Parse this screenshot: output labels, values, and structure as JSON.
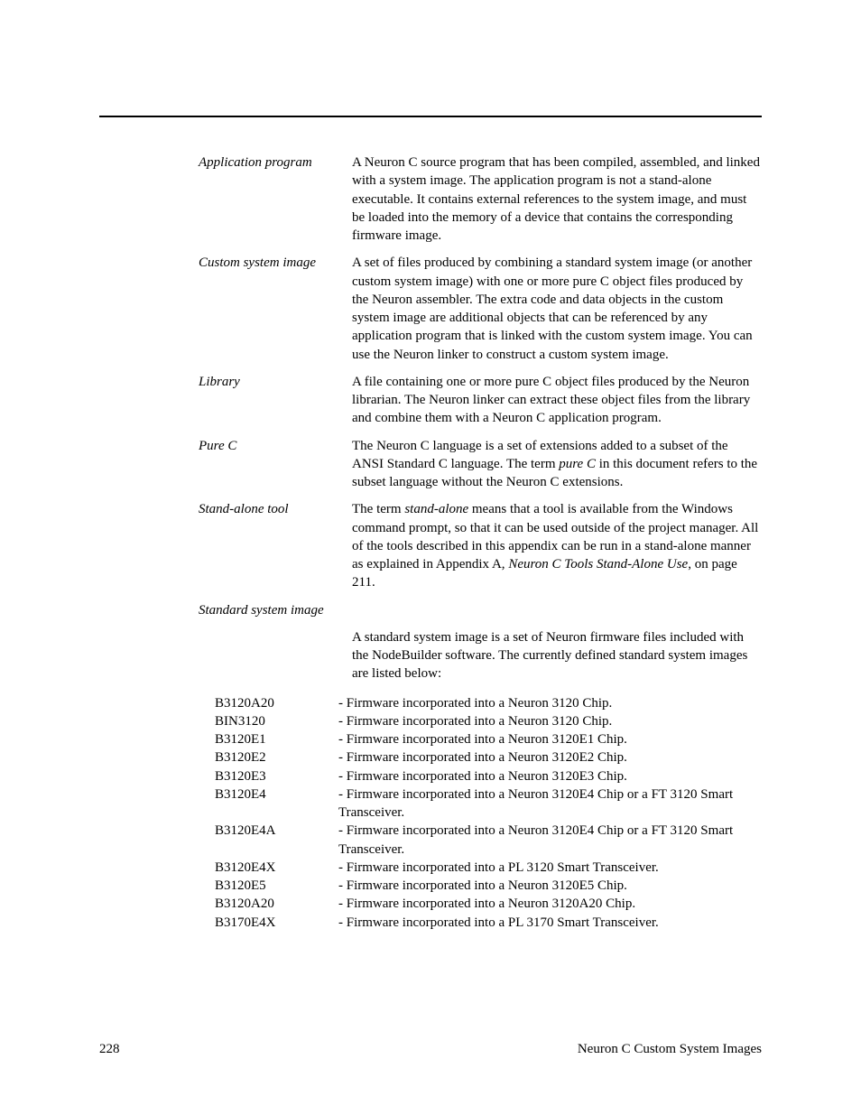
{
  "defs": {
    "app_program": {
      "term": "Application program",
      "desc": "A Neuron C source program that has been compiled, assembled, and linked with a system image.  The application program is not a stand-alone executable.  It contains external references to the system image, and must be loaded into the memory of a device that contains the corresponding firmware image."
    },
    "custom_image": {
      "term": "Custom system image",
      "desc": "A set of files produced by combining a standard system image (or another custom system image) with one or more pure C object files produced by the Neuron assembler.  The extra code and data objects in the custom system image are additional objects that can be referenced by any application program that is linked with the custom system image.  You can use the Neuron linker to construct a custom system image."
    },
    "library": {
      "term": "Library",
      "desc": "A file containing one or more pure C object files produced by the Neuron librarian.  The Neuron linker can extract these object files from the library and combine them with a Neuron C application program."
    },
    "pure_c": {
      "term": "Pure C",
      "d1": "The Neuron C language is a set of extensions added to a subset of the ANSI Standard C language.  The term ",
      "d2": "pure C",
      "d3": " in this document refers to the subset language without the Neuron C extensions."
    },
    "stand_alone": {
      "term": "Stand-alone tool",
      "d1": "The term ",
      "d2": "stand-alone",
      "d3": " means that a tool is available from the Windows command prompt, so that it can be used outside of the project manager.  All of the tools described in this appendix can be run in a stand-alone manner as explained in Appendix A, ",
      "d4": "Neuron C Tools Stand-Alone Use",
      "d5": ", on page 211."
    },
    "std_image": {
      "term": "Standard system image",
      "desc": "A standard system image is a set of Neuron firmware files included with the NodeBuilder software.  The currently defined standard system images are listed below:"
    }
  },
  "fw": [
    {
      "code": "B3120A20",
      "desc": "- Firmware incorporated into a Neuron 3120 Chip."
    },
    {
      "code": "BIN3120",
      "desc": "- Firmware incorporated into a Neuron 3120 Chip."
    },
    {
      "code": "B3120E1",
      "desc": "- Firmware incorporated into a Neuron 3120E1 Chip."
    },
    {
      "code": "B3120E2",
      "desc": "- Firmware incorporated into a Neuron 3120E2 Chip."
    },
    {
      "code": "B3120E3",
      "desc": "- Firmware incorporated into a Neuron 3120E3 Chip."
    },
    {
      "code": "B3120E4",
      "desc": "- Firmware incorporated into a Neuron 3120E4 Chip or a FT 3120 Smart Transceiver."
    },
    {
      "code": "B3120E4A",
      "desc": "- Firmware incorporated into a Neuron 3120E4 Chip or a FT 3120 Smart Transceiver."
    },
    {
      "code": "B3120E4X",
      "desc": "- Firmware incorporated into a PL 3120 Smart Transceiver."
    },
    {
      "code": "B3120E5",
      "desc": "- Firmware incorporated into a Neuron 3120E5 Chip."
    },
    {
      "code": "B3120A20",
      "desc": "- Firmware incorporated into a Neuron 3120A20 Chip."
    },
    {
      "code": "B3170E4X",
      "desc": "- Firmware incorporated into a PL 3170 Smart Transceiver."
    }
  ],
  "footer": {
    "page": "228",
    "title": "Neuron C Custom System Images"
  }
}
